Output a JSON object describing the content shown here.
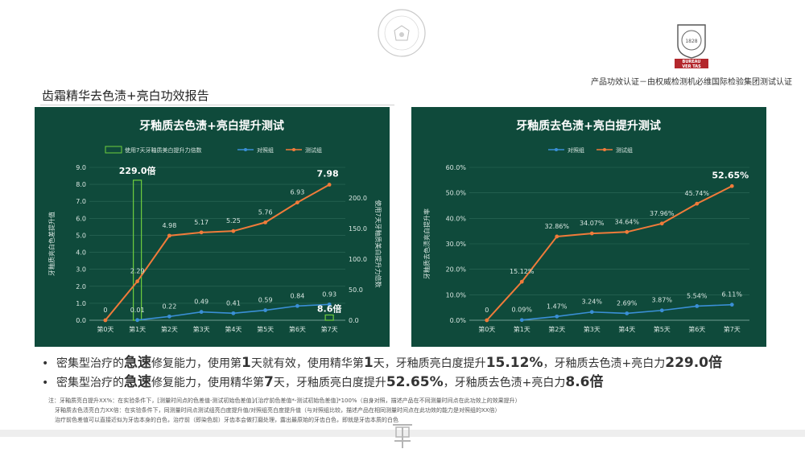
{
  "header": {
    "cert_tagline": "产品功效认证－由权威检测机必维国际检验集团测试认证",
    "cert_logo_text": [
      "BUREAU",
      "VER TAS"
    ],
    "cert_logo_year": "1828"
  },
  "report_title": "齿霜精华去色渍+亮白功效报告",
  "bullets": [
    {
      "pre": "密集型治疗的",
      "emph": "急速",
      "mid1": "修复能力，使用第",
      "num1": "1",
      "mid2": "天就有效，使用精华第",
      "num2": "1",
      "mid3": "天，牙釉质亮白度提升",
      "val1": "15.12%",
      "mid4": "，牙釉质去色渍+亮白力",
      "val2": "229.0倍"
    },
    {
      "pre": "密集型治疗的",
      "emph": "急速",
      "mid1": "修复能力，使用精华第",
      "num1": "7",
      "mid2": "天，牙釉质亮白度提升",
      "val1": "52.65%",
      "mid3": "，牙釉质去色渍+亮白力",
      "val2": "8.6倍"
    }
  ],
  "notes": [
    "注：牙釉质亮白提升XX%：在实验条件下，[测量时间点的色差值-测试初始色差值]/[治疗前色差值*-测试初始色差值]*100%（自身对照，描述产品在不同测量时间点在此功效上的效果提升）",
    "牙釉质去色渍亮白力XX倍：在实验条件下，同测量时间点测试组亮白度提升值/对照组亮白度提升值（与对照组比较，描述产品在相同测量时间点在此功效的能力是对照组的XX倍）",
    "治疗前色差值可以直接近似为牙齿本身的白色，治疗前（即染色前）牙齿本会做打磨处理，露出最原始的牙齿白色，即就是牙齿本质的白色"
  ],
  "colors": {
    "panel_bg": "#0f4a3b",
    "test_line": "#f07b3a",
    "control_line": "#3a8fd6",
    "multiple_bar": "#6fce3e"
  },
  "chart_data": [
    {
      "type": "line",
      "title": "牙釉质去色渍+亮白提升测试",
      "categories": [
        "第0天",
        "第1天",
        "第2天",
        "第3天",
        "第4天",
        "第5天",
        "第6天",
        "第7天"
      ],
      "ylabel": "牙釉质亮白色差提升值",
      "y2label": "使用7天牙釉质美白提升力倍数",
      "ylim": [
        0,
        9
      ],
      "yticks": [
        "0.0",
        "1.0",
        "2.0",
        "3.0",
        "4.0",
        "5.0",
        "6.0",
        "7.0",
        "8.0",
        "9.0"
      ],
      "y2lim": [
        0,
        250
      ],
      "y2ticks": [
        "0.0",
        "50.0",
        "100.0",
        "150.0",
        "200.0"
      ],
      "legend_position": "top",
      "series": [
        {
          "name": "对照组",
          "values": [
            null,
            0.01,
            0.22,
            0.49,
            0.41,
            0.59,
            0.84,
            0.93
          ],
          "labels": [
            "",
            "0.01",
            "0.22",
            "0.49",
            "0.41",
            "0.59",
            "0.84",
            "0.93"
          ]
        },
        {
          "name": "测试组",
          "values": [
            0,
            2.29,
            4.98,
            5.17,
            5.25,
            5.76,
            6.93,
            7.98
          ],
          "labels": [
            "0",
            "2.29",
            "4.98",
            "5.17",
            "5.25",
            "5.76",
            "6.93",
            "7.98"
          ]
        }
      ],
      "bar_series": {
        "name": "使用7天牙釉质美白提升力倍数",
        "axis": "y2",
        "values": [
          null,
          229.0,
          null,
          null,
          null,
          null,
          null,
          8.6
        ],
        "labels": [
          "",
          "229.0倍",
          "",
          "",
          "",
          "",
          "",
          "8.6倍"
        ]
      }
    },
    {
      "type": "line",
      "title": "牙釉质去色渍+亮白提升测试",
      "categories": [
        "第0天",
        "第1天",
        "第2天",
        "第3天",
        "第4天",
        "第5天",
        "第6天",
        "第7天"
      ],
      "ylabel": "牙釉质去色渍亮白提升率",
      "ylim": [
        0,
        60
      ],
      "yticks": [
        "0.0%",
        "10.0%",
        "20.0%",
        "30.0%",
        "40.0%",
        "50.0%",
        "60.0%"
      ],
      "legend_position": "top",
      "series": [
        {
          "name": "对照组",
          "values": [
            null,
            0.09,
            1.47,
            3.24,
            2.69,
            3.87,
            5.54,
            6.11
          ],
          "labels": [
            "",
            "0.09%",
            "1.47%",
            "3.24%",
            "2.69%",
            "3.87%",
            "5.54%",
            "6.11%"
          ]
        },
        {
          "name": "测试组",
          "values": [
            0,
            15.12,
            32.86,
            34.07,
            34.64,
            37.96,
            45.74,
            52.65
          ],
          "labels": [
            "0",
            "15.12%",
            "32.86%",
            "34.07%",
            "34.64%",
            "37.96%",
            "45.74%",
            "52.65%"
          ]
        }
      ]
    }
  ]
}
